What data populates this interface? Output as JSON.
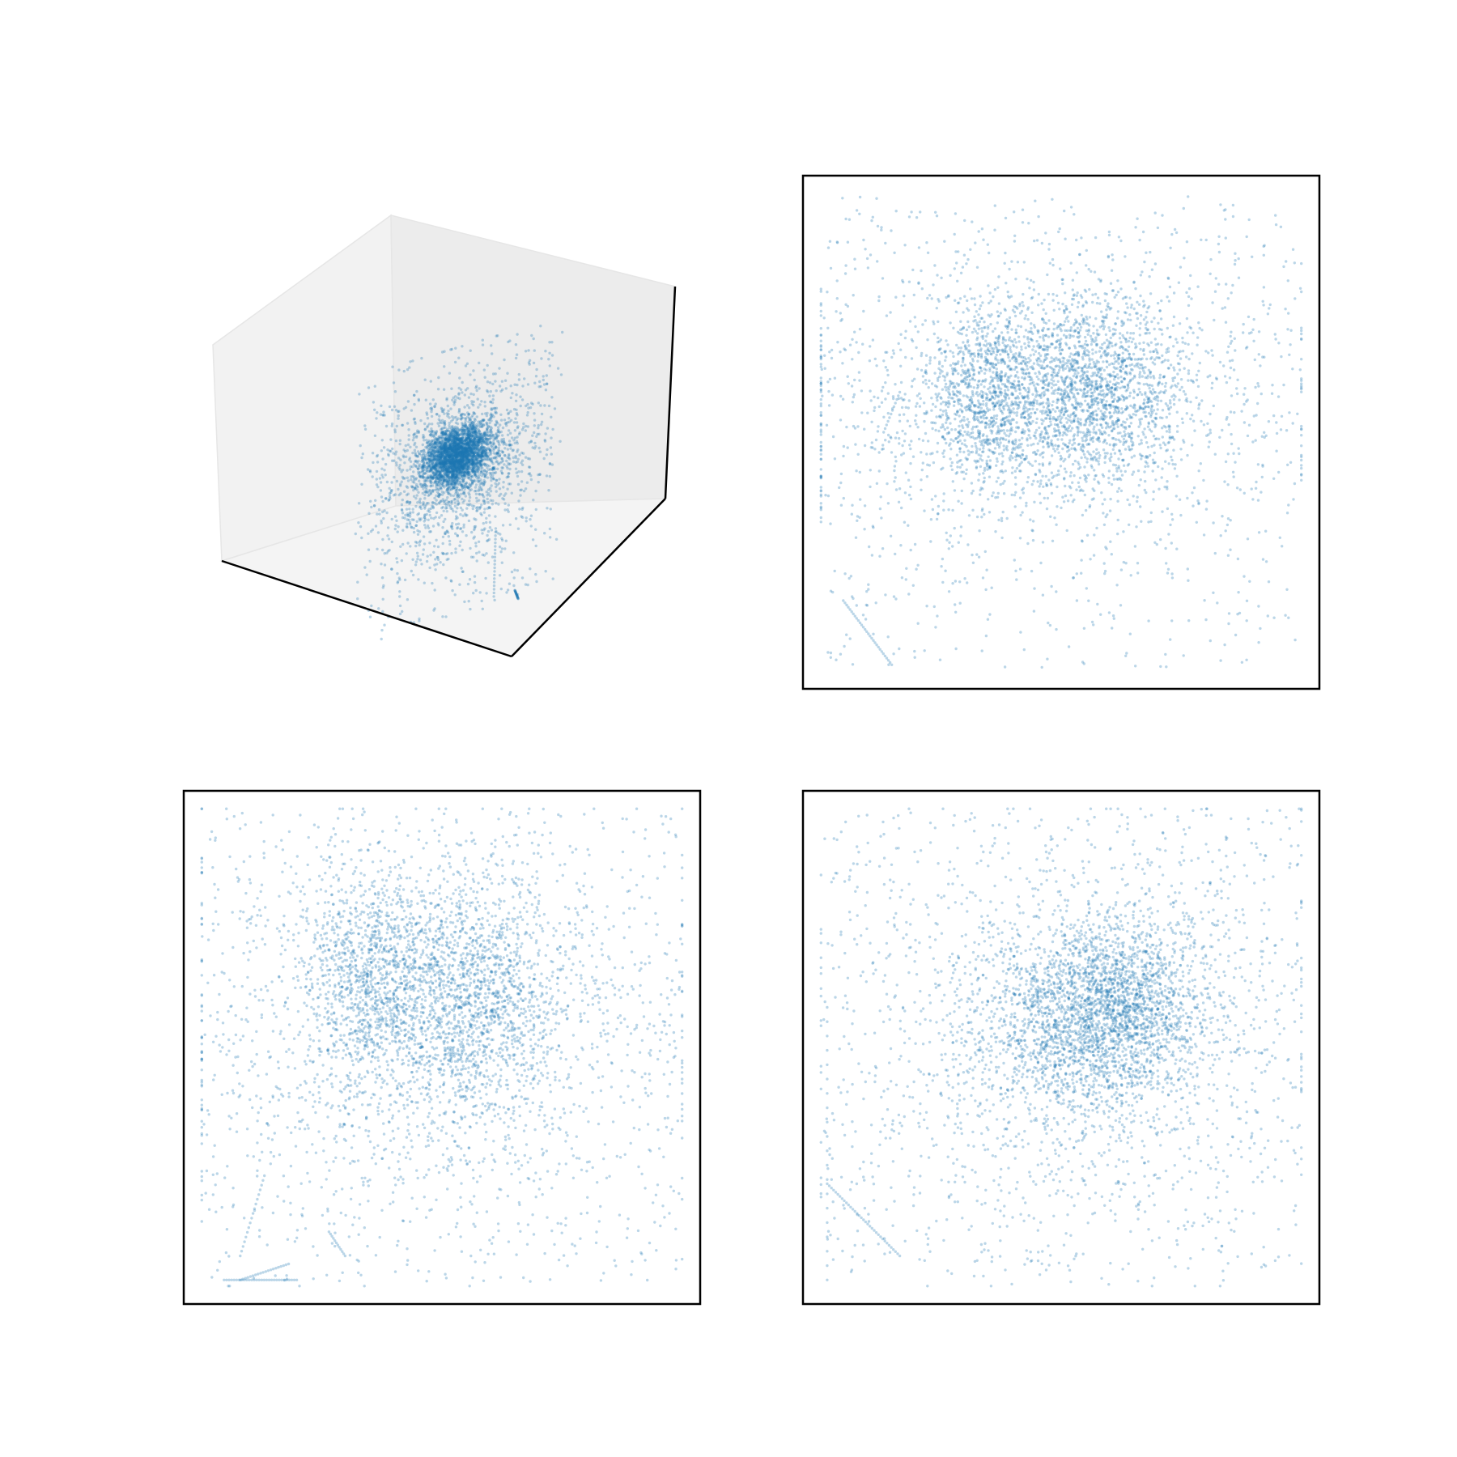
{
  "chart_data": [
    {
      "id": "scatter-3d",
      "type": "scatter",
      "projection": "3d",
      "title": "",
      "xlabel": "",
      "ylabel": "",
      "zlabel": "",
      "ticks": "hidden",
      "pane_color": "#f2f2f2",
      "marker_color": "#1f77b4",
      "marker_alpha": 0.3,
      "xlim": [
        -3,
        3
      ],
      "ylim": [
        -3,
        3
      ],
      "zlim": [
        -3,
        3
      ],
      "series": [
        {
          "kind": "blob",
          "cx": -0.4,
          "cy": 0.0,
          "cz": 0.6,
          "sx": 0.55,
          "sy": 0.55,
          "sz": 0.3,
          "n": 1500
        },
        {
          "kind": "blob",
          "cx": 0.6,
          "cy": 0.2,
          "cz": 0.5,
          "sx": 0.55,
          "sy": 0.55,
          "sz": 0.3,
          "n": 1500
        },
        {
          "kind": "blob",
          "cx": 0.1,
          "cy": 0.1,
          "cz": 0.3,
          "sx": 1.5,
          "sy": 1.5,
          "sz": 1.0,
          "n": 1300
        },
        {
          "kind": "uniform",
          "n": 250
        },
        {
          "kind": "line",
          "from": [
            -2.4,
            -2.4,
            -2.6
          ],
          "to": [
            -1.8,
            -2.4,
            -2.8
          ],
          "n": 25
        },
        {
          "kind": "line",
          "from": [
            -1.8,
            -1.6,
            -1.2
          ],
          "to": [
            -1.8,
            -1.6,
            -2.6
          ],
          "n": 20
        }
      ]
    },
    {
      "id": "projection-xy",
      "type": "scatter",
      "title": "",
      "xlabel": "",
      "ylabel": "",
      "ticks": "hidden",
      "marker_color": "#1f77b4",
      "marker_alpha": 0.3,
      "xlim": [
        -3.2,
        3.2
      ],
      "ylim": [
        -3.2,
        3.2
      ],
      "series": [
        {
          "kind": "blob",
          "cx": -0.9,
          "cy": 0.5,
          "sx": 0.35,
          "sy": 0.55,
          "n": 900
        },
        {
          "kind": "blob",
          "cx": 0.35,
          "cy": 0.55,
          "sx": 0.55,
          "sy": 0.6,
          "n": 1500
        },
        {
          "kind": "blob",
          "cx": -0.2,
          "cy": 0.4,
          "sx": 1.6,
          "sy": 0.8,
          "n": 1300
        },
        {
          "kind": "uniform",
          "n": 700
        },
        {
          "kind": "line",
          "from": [
            -2.7,
            -2.1
          ],
          "to": [
            -2.1,
            -2.9
          ],
          "n": 30
        },
        {
          "kind": "line",
          "from": [
            -2.2,
            0.0
          ],
          "to": [
            -2.0,
            0.5
          ],
          "n": 12
        }
      ]
    },
    {
      "id": "projection-xz",
      "type": "scatter",
      "title": "",
      "xlabel": "",
      "ylabel": "",
      "ticks": "hidden",
      "marker_color": "#1f77b4",
      "marker_alpha": 0.3,
      "xlim": [
        -3.2,
        3.2
      ],
      "ylim": [
        -3.2,
        3.2
      ],
      "series": [
        {
          "kind": "blob",
          "cx": -0.85,
          "cy": 0.9,
          "sx": 0.4,
          "sy": 0.65,
          "n": 1000
        },
        {
          "kind": "blob",
          "cx": 0.35,
          "cy": 0.6,
          "sx": 0.55,
          "sy": 0.8,
          "n": 1400
        },
        {
          "kind": "blob",
          "cx": -0.2,
          "cy": 0.3,
          "sx": 1.6,
          "sy": 1.2,
          "n": 1300
        },
        {
          "kind": "uniform",
          "n": 750
        },
        {
          "kind": "line",
          "from": [
            -2.7,
            -2.9
          ],
          "to": [
            -1.8,
            -2.9
          ],
          "n": 30
        },
        {
          "kind": "line",
          "from": [
            -2.5,
            -2.9
          ],
          "to": [
            -1.9,
            -2.7
          ],
          "n": 20
        },
        {
          "kind": "line",
          "from": [
            -1.4,
            -2.3
          ],
          "to": [
            -1.2,
            -2.6
          ],
          "n": 12
        },
        {
          "kind": "line",
          "from": [
            -2.5,
            -2.6
          ],
          "to": [
            -2.2,
            -1.6
          ],
          "n": 18
        }
      ]
    },
    {
      "id": "projection-yz",
      "type": "scatter",
      "title": "",
      "xlabel": "",
      "ylabel": "",
      "ticks": "hidden",
      "marker_color": "#1f77b4",
      "marker_alpha": 0.3,
      "xlim": [
        -3.2,
        3.2
      ],
      "ylim": [
        -3.2,
        3.2
      ],
      "series": [
        {
          "kind": "blob",
          "cx": 0.2,
          "cy": 0.3,
          "sx": 0.75,
          "sy": 0.6,
          "n": 1400
        },
        {
          "kind": "blob",
          "cx": 0.7,
          "cy": 0.5,
          "sx": 0.55,
          "sy": 0.55,
          "n": 1300
        },
        {
          "kind": "blob",
          "cx": 0.2,
          "cy": 0.2,
          "sx": 1.5,
          "sy": 1.3,
          "n": 1200
        },
        {
          "kind": "uniform",
          "n": 750
        },
        {
          "kind": "line",
          "from": [
            -2.9,
            -1.7
          ],
          "to": [
            -2.0,
            -2.6
          ],
          "n": 35
        },
        {
          "kind": "line",
          "from": [
            -2.9,
            -2.9
          ],
          "to": [
            -2.9,
            0.5
          ],
          "n": 20
        }
      ]
    }
  ]
}
